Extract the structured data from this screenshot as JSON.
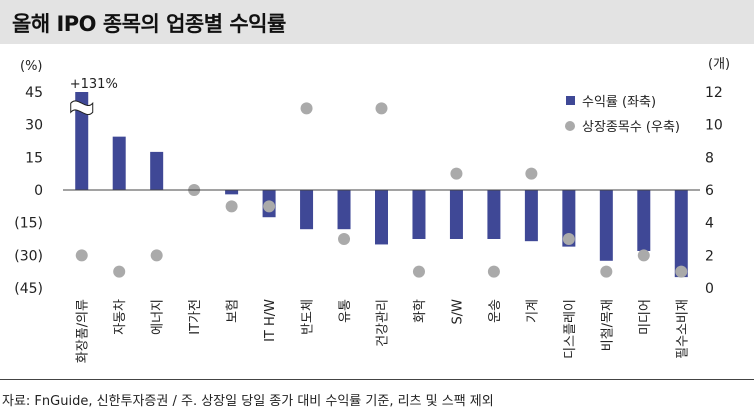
{
  "title": "올해 IPO 종목의 업종별 수익률",
  "source_note": "자료: FnGuide, 신한투자증권 / 주. 상장일 당일 종가 대비 수익률 기준, 리츠 및 스팩 제외",
  "chart_data": {
    "type": "bar",
    "categories": [
      "화장품/의류",
      "자동차",
      "에너지",
      "IT가전",
      "보험",
      "IT H/W",
      "반도체",
      "유통",
      "건강관리",
      "화학",
      "S/W",
      "운송",
      "기계",
      "디스플레이",
      "비철/목재",
      "미디어",
      "필수소비재"
    ],
    "series": [
      {
        "name": "수익률 (좌축)",
        "type": "bar",
        "axis": "left",
        "color": "#3f4896",
        "values": [
          131,
          24.5,
          17.5,
          0,
          -2,
          -12.5,
          -18,
          -18,
          -25,
          -22.5,
          -22.5,
          -22.5,
          -23.5,
          -26,
          -32.5,
          -28,
          -40
        ]
      },
      {
        "name": "상장종목수 (우축)",
        "type": "scatter",
        "axis": "right",
        "color": "#aaaaaa",
        "values": [
          2,
          1,
          2,
          6,
          5,
          5,
          11,
          3,
          11,
          1,
          7,
          1,
          7,
          3,
          1,
          2,
          1
        ]
      }
    ],
    "annotations": [
      "+131%"
    ],
    "ylabel_left": "(%)",
    "ylabel_right": "(개)",
    "ylim_left": [
      -45,
      45
    ],
    "yticks_left": [
      "45",
      "30",
      "15",
      "0",
      "(15)",
      "(30)",
      "(45)"
    ],
    "ylim_right": [
      0,
      12
    ],
    "yticks_right": [
      "12",
      "10",
      "8",
      "6",
      "4",
      "2",
      "0"
    ],
    "grid": false,
    "legend": "top-right",
    "axis_break": "화장품/의류"
  }
}
